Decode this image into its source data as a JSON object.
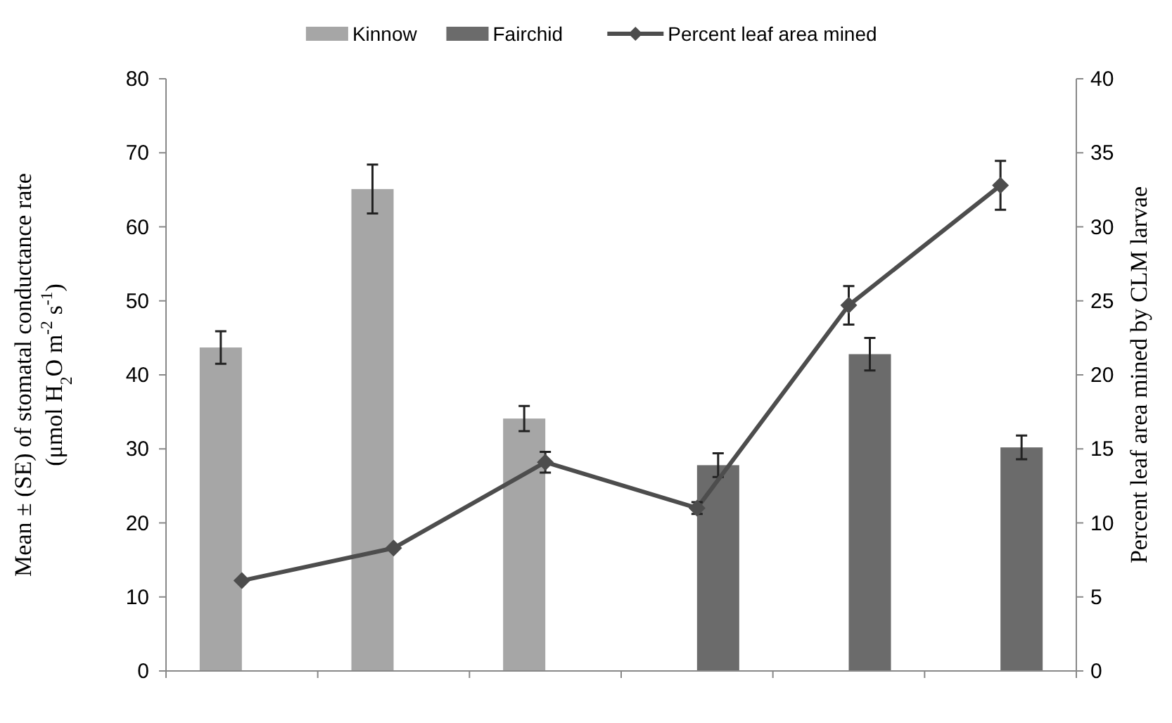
{
  "chart_data": {
    "type": "bar",
    "categories": [
      null,
      null,
      null,
      null,
      null,
      null
    ],
    "series": [
      {
        "name": "Kinnow",
        "color": "#a6a6a6",
        "values": [
          43.7,
          65.1,
          34.1,
          null,
          null,
          null
        ],
        "errors": [
          2.2,
          3.3,
          1.7,
          null,
          null,
          null
        ]
      },
      {
        "name": "Fairchid",
        "color": "#6b6b6b",
        "values": [
          null,
          null,
          null,
          27.8,
          42.8,
          30.2
        ],
        "errors": [
          null,
          null,
          null,
          1.6,
          2.2,
          1.6
        ]
      },
      {
        "name": "Percent leaf area mined",
        "type": "line",
        "axis": "y2",
        "color": "#4d4d4d",
        "marker": "diamond",
        "values": [
          6.1,
          8.3,
          14.1,
          11.0,
          24.7,
          32.8
        ],
        "errors": [
          null,
          null,
          0.7,
          0.4,
          1.3,
          1.65
        ]
      }
    ],
    "ylabel": "Mean ± (SE) of stomatal conductance rate (μmol H$_{2}$O m$^{-2}$ s$^{-1}$)",
    "y2label": "Percent leaf area mined by CLM larvae",
    "ylim": [
      0,
      80
    ],
    "yticks": [
      0,
      10,
      20,
      30,
      40,
      50,
      60,
      70,
      80
    ],
    "y2lim": [
      0,
      40
    ],
    "y2ticks": [
      0,
      5,
      10,
      15,
      20,
      25,
      30,
      35,
      40
    ],
    "grid": false,
    "legend": "top"
  }
}
